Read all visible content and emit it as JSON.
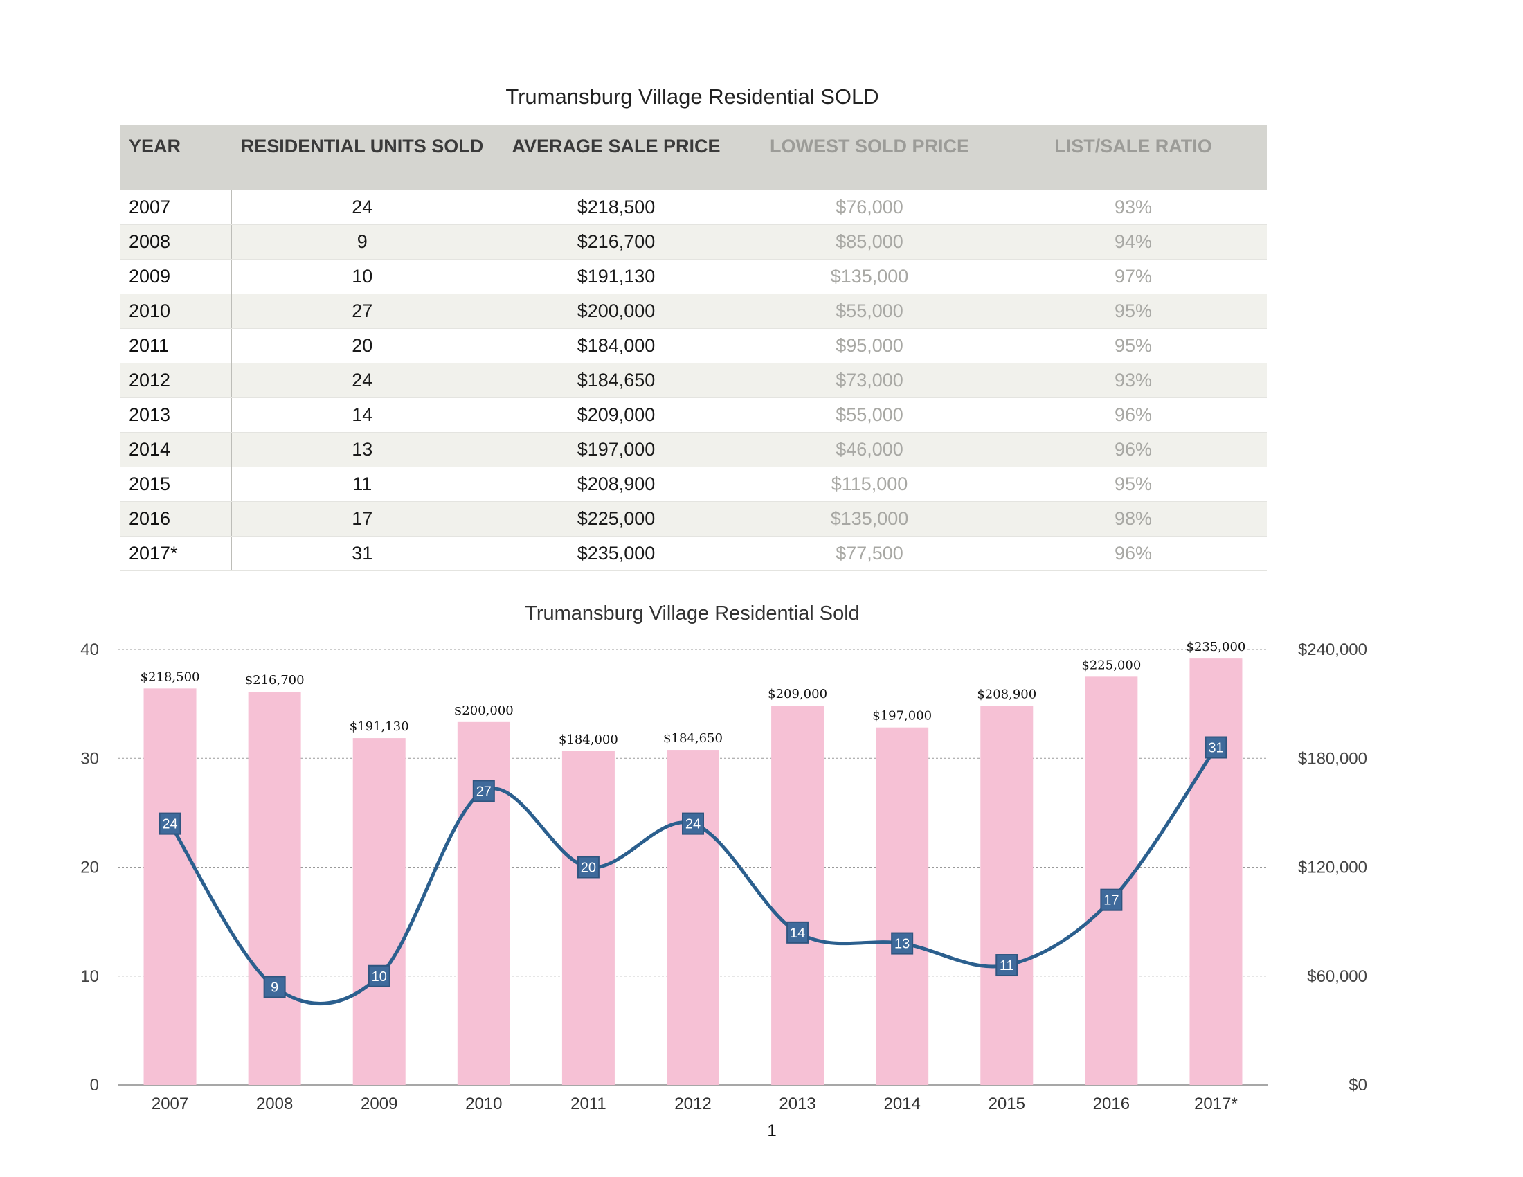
{
  "table": {
    "title": "Trumansburg Village Residential SOLD",
    "headers": {
      "year": "YEAR",
      "units": "RESIDENTIAL UNITS SOLD",
      "avg": "AVERAGE SALE PRICE",
      "lowest": "LOWEST SOLD PRICE",
      "ratio": "LIST/SALE RATIO"
    },
    "rows": [
      {
        "year": "2007",
        "units": "24",
        "avg": "$218,500",
        "lowest": "$76,000",
        "ratio": "93%"
      },
      {
        "year": "2008",
        "units": "9",
        "avg": "$216,700",
        "lowest": "$85,000",
        "ratio": "94%"
      },
      {
        "year": "2009",
        "units": "10",
        "avg": "$191,130",
        "lowest": "$135,000",
        "ratio": "97%"
      },
      {
        "year": "2010",
        "units": "27",
        "avg": "$200,000",
        "lowest": "$55,000",
        "ratio": "95%"
      },
      {
        "year": "2011",
        "units": "20",
        "avg": "$184,000",
        "lowest": "$95,000",
        "ratio": "95%"
      },
      {
        "year": "2012",
        "units": "24",
        "avg": "$184,650",
        "lowest": "$73,000",
        "ratio": "93%"
      },
      {
        "year": "2013",
        "units": "14",
        "avg": "$209,000",
        "lowest": "$55,000",
        "ratio": "96%"
      },
      {
        "year": "2014",
        "units": "13",
        "avg": "$197,000",
        "lowest": "$46,000",
        "ratio": "96%"
      },
      {
        "year": "2015",
        "units": "11",
        "avg": "$208,900",
        "lowest": "$115,000",
        "ratio": "95%"
      },
      {
        "year": "2016",
        "units": "17",
        "avg": "$225,000",
        "lowest": "$135,000",
        "ratio": "98%"
      },
      {
        "year": "2017*",
        "units": "31",
        "avg": "$235,000",
        "lowest": "$77,500",
        "ratio": "96%"
      }
    ]
  },
  "chart_data": {
    "type": "bar",
    "title": "Trumansburg Village Residential Sold",
    "categories": [
      "2007",
      "2008",
      "2009",
      "2010",
      "2011",
      "2012",
      "2013",
      "2014",
      "2015",
      "2016",
      "2017*"
    ],
    "series": [
      {
        "type": "bar",
        "axis": "right",
        "color": "#f6c1d5",
        "values": [
          218500,
          216700,
          191130,
          200000,
          184000,
          184650,
          209000,
          197000,
          208900,
          225000,
          235000
        ],
        "labels": [
          "$218,500",
          "$216,700",
          "$191,130",
          "$200,000",
          "$184,000",
          "$184,650",
          "$209,000",
          "$197,000",
          "$208,900",
          "$225,000",
          "$235,000"
        ]
      },
      {
        "type": "line",
        "axis": "left",
        "color": "#2b5f8e",
        "marker_color": "#3f6a9b",
        "values": [
          24,
          9,
          10,
          27,
          20,
          24,
          14,
          13,
          11,
          17,
          31
        ]
      }
    ],
    "y_left": {
      "range": [
        0,
        40
      ],
      "ticks": [
        "0",
        "10",
        "20",
        "30",
        "40"
      ]
    },
    "y_right": {
      "range": [
        0,
        240000
      ],
      "ticks": [
        "$0",
        "$60,000",
        "$120,000",
        "$180,000",
        "$240,000"
      ]
    },
    "grid": true,
    "legend": "none"
  },
  "page_number": "1"
}
